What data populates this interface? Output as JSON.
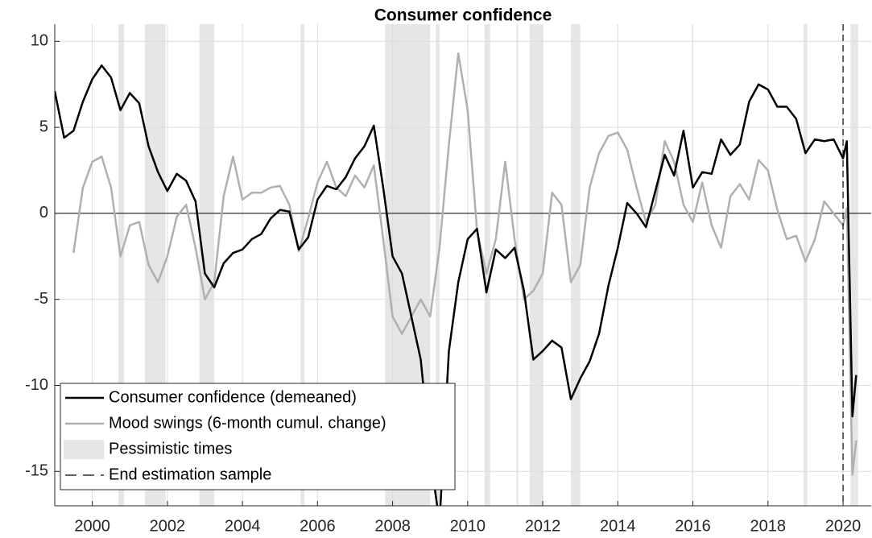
{
  "chart_data": {
    "type": "line",
    "title": "Consumer confidence",
    "x": [
      1999.0,
      1999.25,
      1999.5,
      1999.75,
      2000.0,
      2000.25,
      2000.5,
      2000.75,
      2001.0,
      2001.25,
      2001.5,
      2001.75,
      2002.0,
      2002.25,
      2002.5,
      2002.75,
      2003.0,
      2003.25,
      2003.5,
      2003.75,
      2004.0,
      2004.25,
      2004.5,
      2004.75,
      2005.0,
      2005.25,
      2005.5,
      2005.75,
      2006.0,
      2006.25,
      2006.5,
      2006.75,
      2007.0,
      2007.25,
      2007.5,
      2007.75,
      2008.0,
      2008.25,
      2008.5,
      2008.75,
      2009.0,
      2009.25,
      2009.5,
      2009.75,
      2010.0,
      2010.25,
      2010.5,
      2010.75,
      2011.0,
      2011.25,
      2011.5,
      2011.75,
      2012.0,
      2012.25,
      2012.5,
      2012.75,
      2013.0,
      2013.25,
      2013.5,
      2013.75,
      2014.0,
      2014.25,
      2014.5,
      2014.75,
      2015.0,
      2015.25,
      2015.5,
      2015.75,
      2016.0,
      2016.25,
      2016.5,
      2016.75,
      2017.0,
      2017.25,
      2017.5,
      2017.75,
      2018.0,
      2018.25,
      2018.5,
      2018.75,
      2019.0,
      2019.25,
      2019.5,
      2019.75,
      2020.0,
      2020.1,
      2020.25,
      2020.35
    ],
    "series": [
      {
        "name": "Consumer confidence (demeaned)",
        "color": "#000000",
        "values": [
          7.1,
          4.4,
          4.8,
          6.5,
          7.8,
          8.6,
          7.9,
          6.0,
          7.0,
          6.4,
          3.9,
          2.4,
          1.3,
          2.3,
          1.9,
          0.7,
          -3.5,
          -4.3,
          -2.9,
          -2.3,
          -2.1,
          -1.5,
          -1.2,
          -0.3,
          0.2,
          0.1,
          -2.1,
          -1.4,
          0.8,
          1.6,
          1.4,
          2.1,
          3.2,
          3.9,
          5.1,
          1.5,
          -2.5,
          -3.5,
          -6.0,
          -8.5,
          -14,
          -18,
          -8,
          -4,
          -1.5,
          -0.9,
          -4.6,
          -2.1,
          -2.6,
          -2.0,
          -4.5,
          -8.5,
          -8.0,
          -7.4,
          -7.8,
          -10.8,
          -9.6,
          -8.6,
          -7.0,
          -4.2,
          -2.0,
          0.6,
          0.0,
          -0.8,
          1.3,
          3.4,
          2.2,
          4.8,
          1.5,
          2.4,
          2.3,
          4.3,
          3.4,
          4.0,
          6.5,
          7.5,
          7.2,
          6.2,
          6.2,
          5.5,
          3.5,
          4.3,
          4.2,
          4.3,
          3.2,
          4.2,
          -11.8,
          -9.4
        ]
      },
      {
        "name": "Mood swings (6-month cumul. change)",
        "color": "#b0b0b0",
        "values": [
          null,
          null,
          -2.3,
          1.5,
          3.0,
          3.3,
          1.5,
          -2.5,
          -0.7,
          -0.5,
          -3.0,
          -4.0,
          -2.5,
          -0.2,
          0.5,
          -2.0,
          -5.0,
          -4.0,
          1.0,
          3.3,
          0.8,
          1.2,
          1.2,
          1.5,
          1.6,
          0.5,
          -2.2,
          -0.3,
          1.8,
          3.0,
          1.5,
          1.0,
          2.2,
          1.5,
          2.8,
          -1.5,
          -6.0,
          -7.0,
          -6.0,
          -5.0,
          -6.0,
          -2.0,
          4.0,
          9.3,
          6.0,
          -1.0,
          -3.5,
          -1.5,
          3.0,
          -1.5,
          -5.0,
          -4.5,
          -3.5,
          1.2,
          0.5,
          -4.0,
          -3.0,
          1.5,
          3.5,
          4.5,
          4.7,
          3.7,
          1.5,
          -0.5,
          0.5,
          4.2,
          3.0,
          0.5,
          -0.5,
          1.8,
          -0.7,
          -2.0,
          1.0,
          1.7,
          0.8,
          3.1,
          2.5,
          0.2,
          -1.5,
          -1.3,
          -2.8,
          -1.5,
          0.7,
          0.0,
          -0.7,
          0.3,
          -15.2,
          -13.2
        ]
      }
    ],
    "shaded": {
      "name": "Pessimistic times",
      "color": "#e6e6e6",
      "periods": [
        [
          2000.7,
          2000.85
        ],
        [
          2001.4,
          2001.95
        ],
        [
          2002.85,
          2003.25
        ],
        [
          2005.55,
          2005.65
        ],
        [
          2007.8,
          2009.0
        ],
        [
          2009.15,
          2009.25
        ],
        [
          2010.45,
          2010.6
        ],
        [
          2011.3,
          2011.35
        ],
        [
          2011.65,
          2012.0
        ],
        [
          2012.75,
          2013.0
        ],
        [
          2018.95,
          2019.05
        ],
        [
          2020.2,
          2020.4
        ]
      ]
    },
    "vline": {
      "name": "End estimation sample",
      "value": 2020.0
    },
    "xlim": [
      1999.0,
      2020.75
    ],
    "ylim": [
      -17,
      11
    ],
    "xticks": [
      2000,
      2002,
      2004,
      2006,
      2008,
      2010,
      2012,
      2014,
      2016,
      2018,
      2020
    ],
    "yticks": [
      -15,
      -10,
      -5,
      0,
      5,
      10
    ],
    "grid": true,
    "legend": "lower left"
  }
}
